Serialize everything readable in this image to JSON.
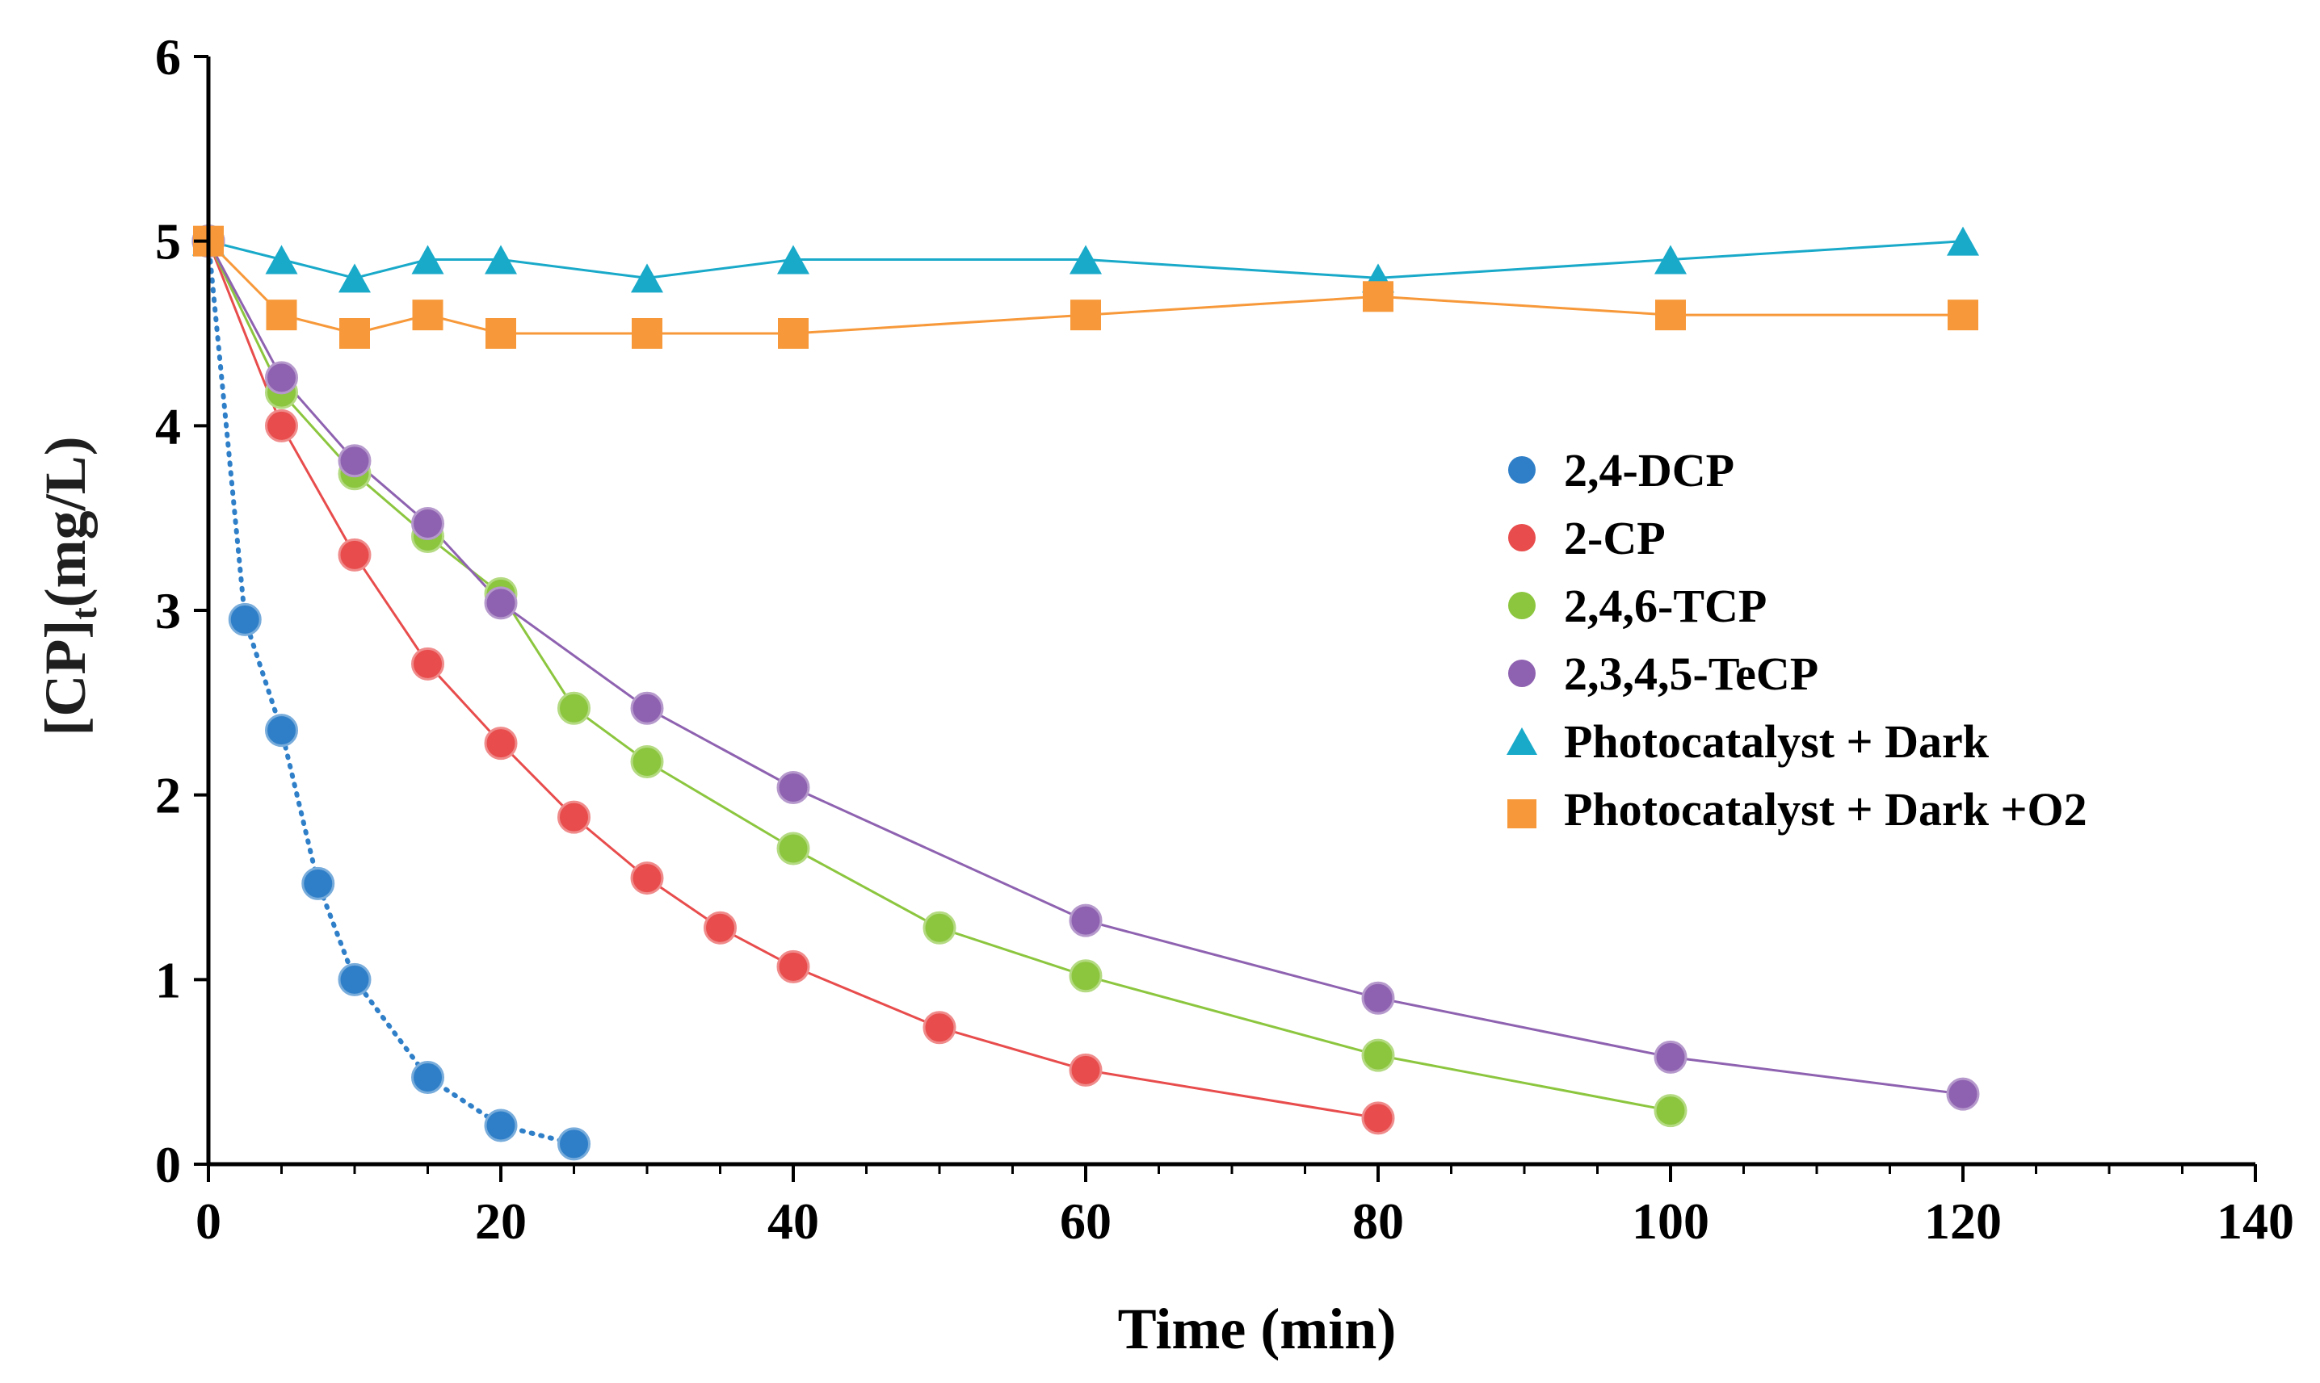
{
  "chart_data": {
    "type": "scatter",
    "title": "",
    "xlabel": "Time (min)",
    "ylabel_main": "[CP]",
    "ylabel_sub": "t",
    "ylabel_unit": "(mg/L)",
    "xlim": [
      0,
      140
    ],
    "ylim": [
      0,
      6
    ],
    "x_ticks": [
      0,
      20,
      40,
      60,
      80,
      100,
      120,
      140
    ],
    "y_ticks": [
      0,
      1,
      2,
      3,
      4,
      5,
      6
    ],
    "x_ticks_labels": [
      "0",
      "20",
      "40",
      "60",
      "80",
      "100",
      "120",
      "140"
    ],
    "y_ticks_labels": [
      "0",
      "1",
      "2",
      "3",
      "4",
      "5",
      "6"
    ],
    "x_minor_step": 5,
    "grid": false,
    "legend_position": "right",
    "series": [
      {
        "name": "2,4-DCP",
        "color": "#2f7fc8",
        "marker": "circle",
        "line": "dotted",
        "x": [
          0,
          2.5,
          5,
          7.5,
          10,
          15,
          20,
          25
        ],
        "y": [
          5.0,
          2.95,
          2.35,
          1.52,
          1.0,
          0.47,
          0.21,
          0.11
        ]
      },
      {
        "name": "2-CP",
        "color": "#e84c4c",
        "marker": "circle",
        "line": "solid",
        "x": [
          0,
          5,
          10,
          15,
          20,
          25,
          30,
          35,
          40,
          50,
          60,
          80
        ],
        "y": [
          5.0,
          4.0,
          3.3,
          2.71,
          2.28,
          1.88,
          1.55,
          1.28,
          1.07,
          0.74,
          0.51,
          0.25
        ]
      },
      {
        "name": "2,4,6-TCP",
        "color": "#8cc63f",
        "marker": "circle",
        "line": "solid",
        "x": [
          0,
          5,
          10,
          15,
          20,
          25,
          30,
          40,
          50,
          60,
          80,
          100
        ],
        "y": [
          5.0,
          4.18,
          3.74,
          3.4,
          3.09,
          2.47,
          2.18,
          1.71,
          1.28,
          1.02,
          0.59,
          0.29
        ]
      },
      {
        "name": "2,3,4,5-TeCP",
        "color": "#8e62b0",
        "marker": "circle",
        "line": "solid",
        "x": [
          0,
          5,
          10,
          15,
          20,
          30,
          40,
          60,
          80,
          100,
          120
        ],
        "y": [
          5.0,
          4.26,
          3.81,
          3.47,
          3.04,
          2.47,
          2.04,
          1.32,
          0.9,
          0.58,
          0.38
        ]
      },
      {
        "name": "Photocatalyst + Dark",
        "color": "#19a9c9",
        "marker": "triangle",
        "line": "solid",
        "x": [
          0,
          5,
          10,
          15,
          20,
          30,
          40,
          60,
          80,
          100,
          120
        ],
        "y": [
          5.0,
          4.9,
          4.8,
          4.9,
          4.9,
          4.8,
          4.9,
          4.9,
          4.8,
          4.9,
          5.0
        ]
      },
      {
        "name": "Photocatalyst + Dark +O2",
        "color": "#f7993a",
        "marker": "square",
        "line": "solid",
        "x": [
          0,
          5,
          10,
          15,
          20,
          30,
          40,
          60,
          80,
          100,
          120
        ],
        "y": [
          5.0,
          4.6,
          4.5,
          4.6,
          4.5,
          4.5,
          4.5,
          4.6,
          4.7,
          4.6,
          4.6
        ]
      }
    ]
  }
}
